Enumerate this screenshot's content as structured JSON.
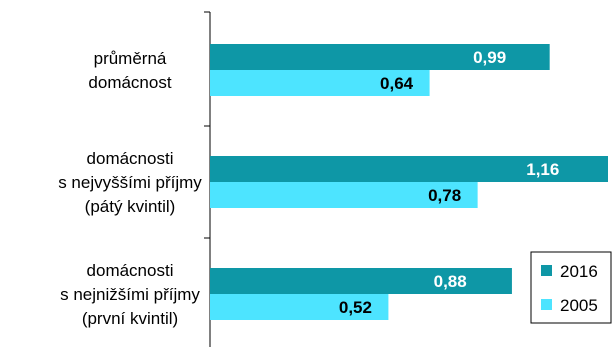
{
  "chart_data": {
    "type": "bar",
    "orientation": "horizontal",
    "categories": [
      [
        "průměrná",
        "domácnost"
      ],
      [
        "domácnosti",
        "s nejvyššími příjmy",
        "(pátý kvintil)"
      ],
      [
        "domácnosti",
        "s nejnižšími příjmy",
        "(první kvintil)"
      ]
    ],
    "series": [
      {
        "name": "2016",
        "values": [
          0.99,
          1.16,
          0.88
        ],
        "labels": [
          "0,99",
          "1,16",
          "0,88"
        ],
        "color": "#0E97A6",
        "label_color": "#ffffff"
      },
      {
        "name": "2005",
        "values": [
          0.64,
          0.78,
          0.52
        ],
        "labels": [
          "0,64",
          "0,78",
          "0,52"
        ],
        "color": "#4DE4FF",
        "label_color": "#000000"
      }
    ],
    "xlim": [
      0,
      1.2
    ],
    "grid": false,
    "legend": "bottom-right"
  }
}
